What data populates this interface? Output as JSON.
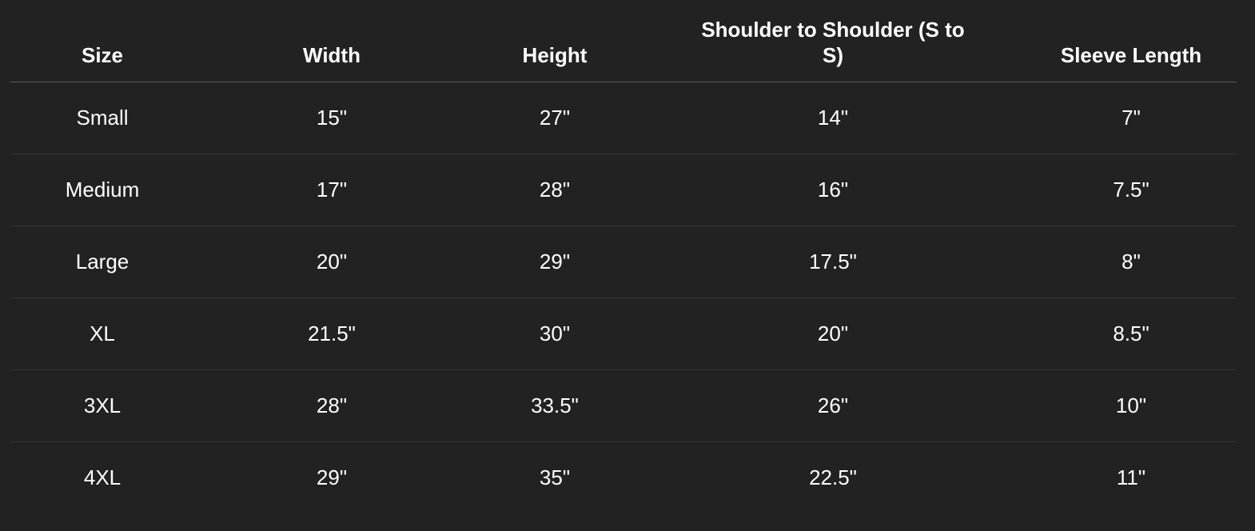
{
  "table": {
    "header": [
      "Size",
      "Width",
      "Height",
      "Shoulder to Shoulder (S to S)",
      "Sleeve Length"
    ],
    "rows": [
      [
        "Small",
        "15\"",
        "27\"",
        "14\"",
        "7\""
      ],
      [
        "Medium",
        "17\"",
        "28\"",
        "16\"",
        "7.5\""
      ],
      [
        "Large",
        "20\"",
        "29\"",
        "17.5\"",
        "8\""
      ],
      [
        "XL",
        "21.5\"",
        "30\"",
        "20\"",
        "8.5\""
      ],
      [
        "3XL",
        "28\"",
        "33.5\"",
        "26\"",
        "10\""
      ],
      [
        "4XL",
        "29\"",
        "35\"",
        "22.5\"",
        "11\""
      ]
    ]
  }
}
